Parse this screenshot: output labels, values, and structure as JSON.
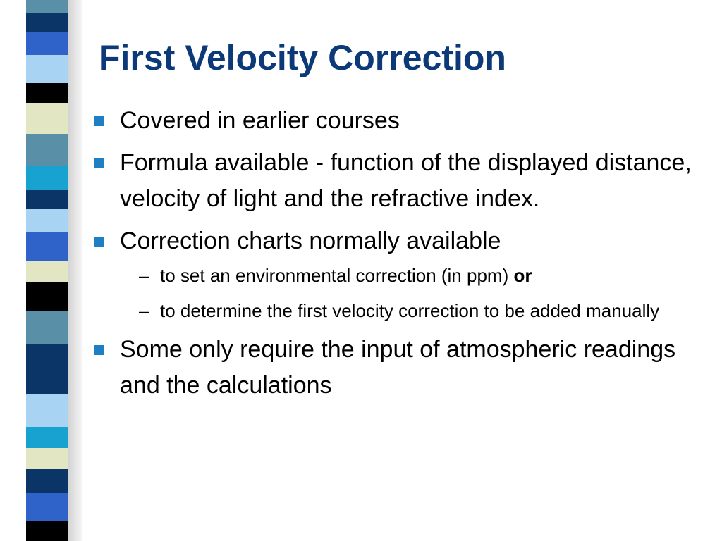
{
  "slide": {
    "title": "First Velocity Correction",
    "bullets": [
      {
        "text": "Covered in earlier courses"
      },
      {
        "text": "Formula available - function of the displayed distance, velocity of light and the refractive index."
      },
      {
        "text": "Correction charts normally available",
        "sub": [
          {
            "text": "to set an environmental correction (in ppm) ",
            "emphasis": "or"
          },
          {
            "text": "to determine the first velocity correction to be added manually"
          }
        ]
      },
      {
        "text": "Some only require the input of atmospheric readings and the calculations"
      }
    ],
    "sub_marker": "–"
  },
  "colors": {
    "title": "#0c3a78",
    "bullet_square": "#1f7fc4",
    "strip_palette": [
      "#5a8fa8",
      "#0a3566",
      "#2f63c9",
      "#000000",
      "#e3e6c3",
      "#17a2d0",
      "#a9d3f3"
    ]
  },
  "icons": {
    "bullet": "filled-square",
    "strip": "decorative-color-blocks"
  }
}
